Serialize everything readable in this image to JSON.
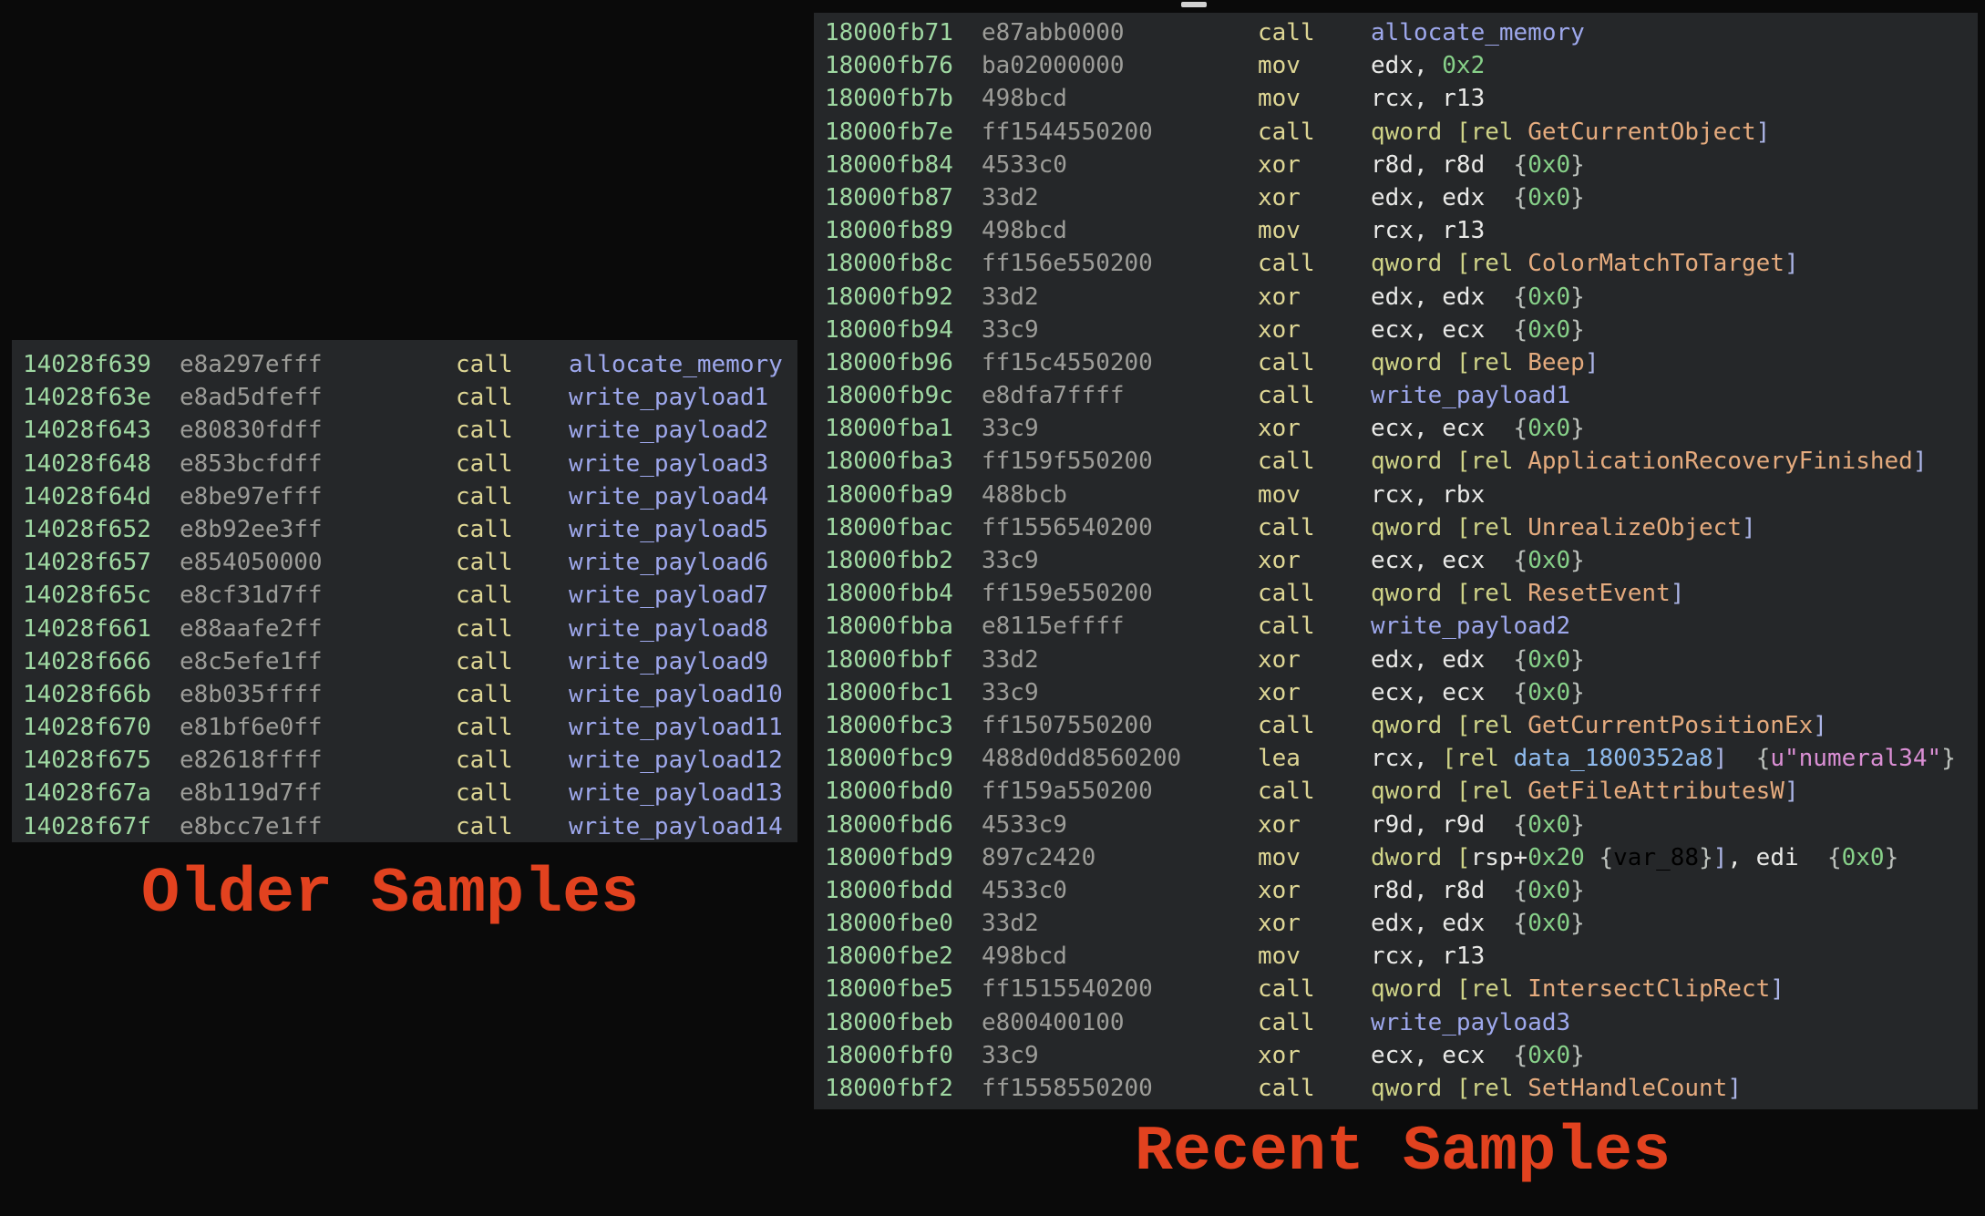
{
  "labels": {
    "older": "Older Samples",
    "recent": "Recent Samples"
  },
  "colors": {
    "background": "#0a0a0a",
    "panel_background": "#252729",
    "address": "#9fd8a2",
    "bytes": "#9d9d99",
    "mnemonic": "#ded694",
    "register": "#e9e9e7",
    "immediate": "#87d189",
    "keyword": "#cfd387",
    "import_function": "#e5ab7e",
    "closing_bracket": "#abb4e6",
    "internal_function": "#9ea8ec",
    "data_symbol": "#8fbbee",
    "string_literal": "#da8fd4",
    "annotation_brace": "#bcc1bc",
    "label_red": "#e2421f"
  },
  "older_panel": {
    "rows": [
      {
        "addr": "14028f639",
        "bytes": "e8a297efff",
        "mnemonic": "call",
        "operands": [
          [
            "fn",
            "allocate_memory"
          ]
        ]
      },
      {
        "addr": "14028f63e",
        "bytes": "e8ad5dfeff",
        "mnemonic": "call",
        "operands": [
          [
            "fn",
            "write_payload1"
          ]
        ]
      },
      {
        "addr": "14028f643",
        "bytes": "e80830fdff",
        "mnemonic": "call",
        "operands": [
          [
            "fn",
            "write_payload2"
          ]
        ]
      },
      {
        "addr": "14028f648",
        "bytes": "e853bcfdff",
        "mnemonic": "call",
        "operands": [
          [
            "fn",
            "write_payload3"
          ]
        ]
      },
      {
        "addr": "14028f64d",
        "bytes": "e8be97efff",
        "mnemonic": "call",
        "operands": [
          [
            "fn",
            "write_payload4"
          ]
        ]
      },
      {
        "addr": "14028f652",
        "bytes": "e8b92ee3ff",
        "mnemonic": "call",
        "operands": [
          [
            "fn",
            "write_payload5"
          ]
        ]
      },
      {
        "addr": "14028f657",
        "bytes": "e854050000",
        "mnemonic": "call",
        "operands": [
          [
            "fn",
            "write_payload6"
          ]
        ]
      },
      {
        "addr": "14028f65c",
        "bytes": "e8cf31d7ff",
        "mnemonic": "call",
        "operands": [
          [
            "fn",
            "write_payload7"
          ]
        ]
      },
      {
        "addr": "14028f661",
        "bytes": "e88aafe2ff",
        "mnemonic": "call",
        "operands": [
          [
            "fn",
            "write_payload8"
          ]
        ]
      },
      {
        "addr": "14028f666",
        "bytes": "e8c5efe1ff",
        "mnemonic": "call",
        "operands": [
          [
            "fn",
            "write_payload9"
          ]
        ]
      },
      {
        "addr": "14028f66b",
        "bytes": "e8b035ffff",
        "mnemonic": "call",
        "operands": [
          [
            "fn",
            "write_payload10"
          ]
        ]
      },
      {
        "addr": "14028f670",
        "bytes": "e81bf6e0ff",
        "mnemonic": "call",
        "operands": [
          [
            "fn",
            "write_payload11"
          ]
        ]
      },
      {
        "addr": "14028f675",
        "bytes": "e82618ffff",
        "mnemonic": "call",
        "operands": [
          [
            "fn",
            "write_payload12"
          ]
        ]
      },
      {
        "addr": "14028f67a",
        "bytes": "e8b119d7ff",
        "mnemonic": "call",
        "operands": [
          [
            "fn",
            "write_payload13"
          ]
        ]
      },
      {
        "addr": "14028f67f",
        "bytes": "e8bcc7e1ff",
        "mnemonic": "call",
        "operands": [
          [
            "fn",
            "write_payload14"
          ]
        ]
      }
    ]
  },
  "recent_panel": {
    "rows": [
      {
        "addr": "18000fb71",
        "bytes": "e87abb0000",
        "mnemonic": "call",
        "operands": [
          [
            "fn",
            "allocate_memory"
          ]
        ]
      },
      {
        "addr": "18000fb76",
        "bytes": "ba02000000",
        "mnemonic": "mov",
        "operands": [
          [
            "reg",
            "edx, "
          ],
          [
            "imm",
            "0x2"
          ]
        ]
      },
      {
        "addr": "18000fb7b",
        "bytes": "498bcd",
        "mnemonic": "mov",
        "operands": [
          [
            "reg",
            "rcx, r13"
          ]
        ]
      },
      {
        "addr": "18000fb7e",
        "bytes": "ff1544550200",
        "mnemonic": "call",
        "operands": [
          [
            "kw",
            "qword [rel "
          ],
          [
            "imp",
            "GetCurrentObject"
          ],
          [
            "cb",
            "]"
          ]
        ]
      },
      {
        "addr": "18000fb84",
        "bytes": "4533c0",
        "mnemonic": "xor",
        "operands": [
          [
            "reg",
            "r8d, r8d"
          ],
          [
            "sp",
            "  "
          ],
          [
            "ab",
            "{"
          ],
          [
            "imm",
            "0x0"
          ],
          [
            "ab",
            "}"
          ]
        ]
      },
      {
        "addr": "18000fb87",
        "bytes": "33d2",
        "mnemonic": "xor",
        "operands": [
          [
            "reg",
            "edx, edx"
          ],
          [
            "sp",
            "  "
          ],
          [
            "ab",
            "{"
          ],
          [
            "imm",
            "0x0"
          ],
          [
            "ab",
            "}"
          ]
        ]
      },
      {
        "addr": "18000fb89",
        "bytes": "498bcd",
        "mnemonic": "mov",
        "operands": [
          [
            "reg",
            "rcx, r13"
          ]
        ]
      },
      {
        "addr": "18000fb8c",
        "bytes": "ff156e550200",
        "mnemonic": "call",
        "operands": [
          [
            "kw",
            "qword [rel "
          ],
          [
            "imp",
            "ColorMatchToTarget"
          ],
          [
            "cb",
            "]"
          ]
        ]
      },
      {
        "addr": "18000fb92",
        "bytes": "33d2",
        "mnemonic": "xor",
        "operands": [
          [
            "reg",
            "edx, edx"
          ],
          [
            "sp",
            "  "
          ],
          [
            "ab",
            "{"
          ],
          [
            "imm",
            "0x0"
          ],
          [
            "ab",
            "}"
          ]
        ]
      },
      {
        "addr": "18000fb94",
        "bytes": "33c9",
        "mnemonic": "xor",
        "operands": [
          [
            "reg",
            "ecx, ecx"
          ],
          [
            "sp",
            "  "
          ],
          [
            "ab",
            "{"
          ],
          [
            "imm",
            "0x0"
          ],
          [
            "ab",
            "}"
          ]
        ]
      },
      {
        "addr": "18000fb96",
        "bytes": "ff15c4550200",
        "mnemonic": "call",
        "operands": [
          [
            "kw",
            "qword [rel "
          ],
          [
            "imp",
            "Beep"
          ],
          [
            "cb",
            "]"
          ]
        ]
      },
      {
        "addr": "18000fb9c",
        "bytes": "e8dfa7ffff",
        "mnemonic": "call",
        "operands": [
          [
            "fn",
            "write_payload1"
          ]
        ]
      },
      {
        "addr": "18000fba1",
        "bytes": "33c9",
        "mnemonic": "xor",
        "operands": [
          [
            "reg",
            "ecx, ecx"
          ],
          [
            "sp",
            "  "
          ],
          [
            "ab",
            "{"
          ],
          [
            "imm",
            "0x0"
          ],
          [
            "ab",
            "}"
          ]
        ]
      },
      {
        "addr": "18000fba3",
        "bytes": "ff159f550200",
        "mnemonic": "call",
        "operands": [
          [
            "kw",
            "qword [rel "
          ],
          [
            "imp",
            "ApplicationRecoveryFinished"
          ],
          [
            "cb",
            "]"
          ]
        ]
      },
      {
        "addr": "18000fba9",
        "bytes": "488bcb",
        "mnemonic": "mov",
        "operands": [
          [
            "reg",
            "rcx, rbx"
          ]
        ]
      },
      {
        "addr": "18000fbac",
        "bytes": "ff1556540200",
        "mnemonic": "call",
        "operands": [
          [
            "kw",
            "qword [rel "
          ],
          [
            "imp",
            "UnrealizeObject"
          ],
          [
            "cb",
            "]"
          ]
        ]
      },
      {
        "addr": "18000fbb2",
        "bytes": "33c9",
        "mnemonic": "xor",
        "operands": [
          [
            "reg",
            "ecx, ecx"
          ],
          [
            "sp",
            "  "
          ],
          [
            "ab",
            "{"
          ],
          [
            "imm",
            "0x0"
          ],
          [
            "ab",
            "}"
          ]
        ]
      },
      {
        "addr": "18000fbb4",
        "bytes": "ff159e550200",
        "mnemonic": "call",
        "operands": [
          [
            "kw",
            "qword [rel "
          ],
          [
            "imp",
            "ResetEvent"
          ],
          [
            "cb",
            "]"
          ]
        ]
      },
      {
        "addr": "18000fbba",
        "bytes": "e8115effff",
        "mnemonic": "call",
        "operands": [
          [
            "fn",
            "write_payload2"
          ]
        ]
      },
      {
        "addr": "18000fbbf",
        "bytes": "33d2",
        "mnemonic": "xor",
        "operands": [
          [
            "reg",
            "edx, edx"
          ],
          [
            "sp",
            "  "
          ],
          [
            "ab",
            "{"
          ],
          [
            "imm",
            "0x0"
          ],
          [
            "ab",
            "}"
          ]
        ]
      },
      {
        "addr": "18000fbc1",
        "bytes": "33c9",
        "mnemonic": "xor",
        "operands": [
          [
            "reg",
            "ecx, ecx"
          ],
          [
            "sp",
            "  "
          ],
          [
            "ab",
            "{"
          ],
          [
            "imm",
            "0x0"
          ],
          [
            "ab",
            "}"
          ]
        ]
      },
      {
        "addr": "18000fbc3",
        "bytes": "ff1507550200",
        "mnemonic": "call",
        "operands": [
          [
            "kw",
            "qword [rel "
          ],
          [
            "imp",
            "GetCurrentPositionEx"
          ],
          [
            "cb",
            "]"
          ]
        ]
      },
      {
        "addr": "18000fbc9",
        "bytes": "488d0dd8560200",
        "mnemonic": "lea",
        "operands": [
          [
            "reg",
            "rcx, "
          ],
          [
            "kw",
            "[rel "
          ],
          [
            "data",
            "data_1800352a8"
          ],
          [
            "cb",
            "]"
          ],
          [
            "sp",
            "  "
          ],
          [
            "ab",
            "{"
          ],
          [
            "str",
            "u\"numeral34\""
          ],
          [
            "ab",
            "}"
          ]
        ]
      },
      {
        "addr": "18000fbd0",
        "bytes": "ff159a550200",
        "mnemonic": "call",
        "operands": [
          [
            "kw",
            "qword [rel "
          ],
          [
            "imp",
            "GetFileAttributesW"
          ],
          [
            "cb",
            "]"
          ]
        ]
      },
      {
        "addr": "18000fbd6",
        "bytes": "4533c9",
        "mnemonic": "xor",
        "operands": [
          [
            "reg",
            "r9d, r9d"
          ],
          [
            "sp",
            "  "
          ],
          [
            "ab",
            "{"
          ],
          [
            "imm",
            "0x0"
          ],
          [
            "ab",
            "}"
          ]
        ]
      },
      {
        "addr": "18000fbd9",
        "bytes": "897c2420",
        "mnemonic": "mov",
        "operands": [
          [
            "kw",
            "dword ["
          ],
          [
            "reg",
            "rsp+"
          ],
          [
            "imm",
            "0x20"
          ],
          [
            "sp",
            " "
          ],
          [
            "ab",
            "{"
          ],
          [
            "var",
            "var_88"
          ],
          [
            "ab",
            "}"
          ],
          [
            "cb",
            "]"
          ],
          [
            "reg",
            ", edi"
          ],
          [
            "sp",
            "  "
          ],
          [
            "ab",
            "{"
          ],
          [
            "imm",
            "0x0"
          ],
          [
            "ab",
            "}"
          ]
        ]
      },
      {
        "addr": "18000fbdd",
        "bytes": "4533c0",
        "mnemonic": "xor",
        "operands": [
          [
            "reg",
            "r8d, r8d"
          ],
          [
            "sp",
            "  "
          ],
          [
            "ab",
            "{"
          ],
          [
            "imm",
            "0x0"
          ],
          [
            "ab",
            "}"
          ]
        ]
      },
      {
        "addr": "18000fbe0",
        "bytes": "33d2",
        "mnemonic": "xor",
        "operands": [
          [
            "reg",
            "edx, edx"
          ],
          [
            "sp",
            "  "
          ],
          [
            "ab",
            "{"
          ],
          [
            "imm",
            "0x0"
          ],
          [
            "ab",
            "}"
          ]
        ]
      },
      {
        "addr": "18000fbe2",
        "bytes": "498bcd",
        "mnemonic": "mov",
        "operands": [
          [
            "reg",
            "rcx, r13"
          ]
        ]
      },
      {
        "addr": "18000fbe5",
        "bytes": "ff1515540200",
        "mnemonic": "call",
        "operands": [
          [
            "kw",
            "qword [rel "
          ],
          [
            "imp",
            "IntersectClipRect"
          ],
          [
            "cb",
            "]"
          ]
        ]
      },
      {
        "addr": "18000fbeb",
        "bytes": "e800400100",
        "mnemonic": "call",
        "operands": [
          [
            "fn",
            "write_payload3"
          ]
        ]
      },
      {
        "addr": "18000fbf0",
        "bytes": "33c9",
        "mnemonic": "xor",
        "operands": [
          [
            "reg",
            "ecx, ecx"
          ],
          [
            "sp",
            "  "
          ],
          [
            "ab",
            "{"
          ],
          [
            "imm",
            "0x0"
          ],
          [
            "ab",
            "}"
          ]
        ]
      },
      {
        "addr": "18000fbf2",
        "bytes": "ff1558550200",
        "mnemonic": "call",
        "operands": [
          [
            "kw",
            "qword [rel "
          ],
          [
            "imp",
            "SetHandleCount"
          ],
          [
            "cb",
            "]"
          ]
        ]
      }
    ]
  }
}
